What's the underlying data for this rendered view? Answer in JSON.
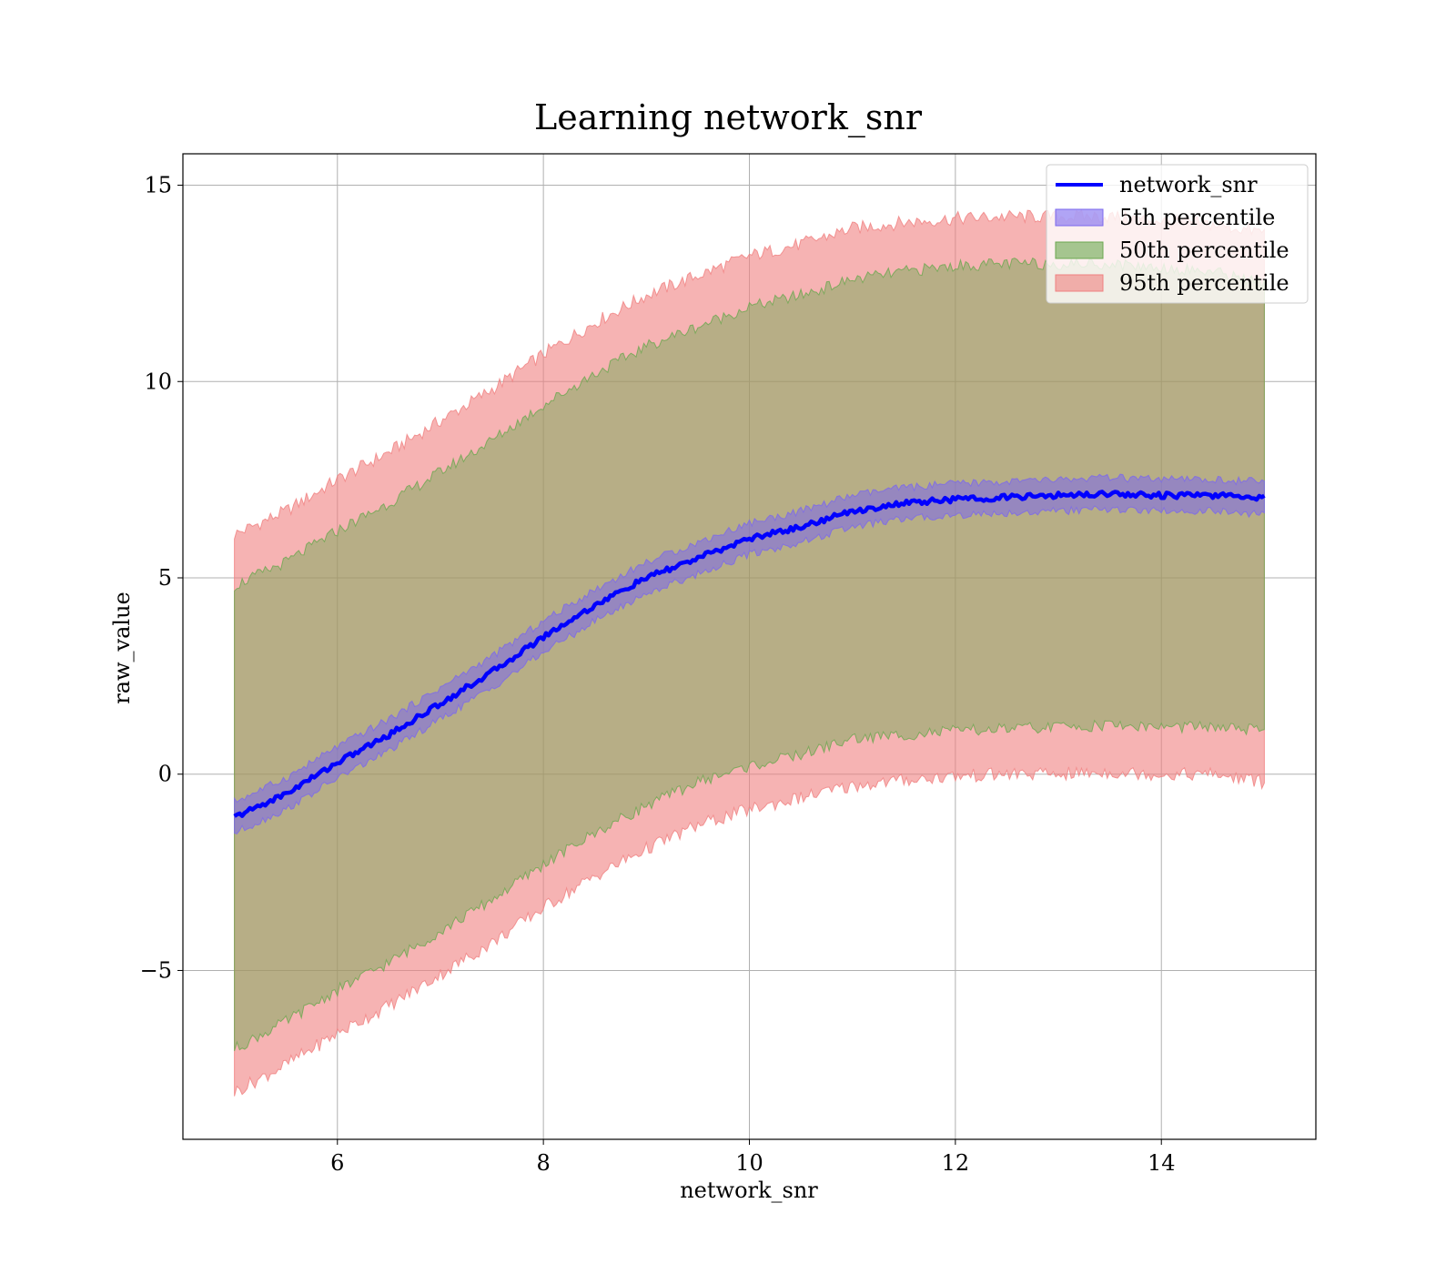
{
  "chart_data": {
    "type": "area",
    "title": "Learning network_snr",
    "xlabel": "network_snr",
    "ylabel": "raw_value",
    "xlim": [
      4.5,
      15.5
    ],
    "ylim": [
      -9.3,
      15.8
    ],
    "grid": true,
    "legend_position": "top-right",
    "x_ticks": [
      {
        "value": 6,
        "label": "6"
      },
      {
        "value": 8,
        "label": "8"
      },
      {
        "value": 10,
        "label": "10"
      },
      {
        "value": 12,
        "label": "12"
      },
      {
        "value": 14,
        "label": "14"
      }
    ],
    "y_ticks": [
      {
        "value": -5,
        "label": "−5"
      },
      {
        "value": 0,
        "label": "0"
      },
      {
        "value": 5,
        "label": "5"
      },
      {
        "value": 10,
        "label": "10"
      },
      {
        "value": 15,
        "label": "15"
      }
    ],
    "x": [
      5,
      5.5,
      6,
      6.5,
      7,
      7.5,
      8,
      8.5,
      9,
      9.5,
      10,
      10.5,
      11,
      11.5,
      12,
      12.5,
      13,
      13.5,
      14,
      14.5,
      15
    ],
    "series": [
      {
        "name": "network_snr",
        "kind": "line",
        "color": "#0000ff",
        "values": [
          -1.1,
          -0.5,
          0.3,
          1.0,
          1.8,
          2.6,
          3.5,
          4.3,
          5.0,
          5.5,
          6.0,
          6.3,
          6.7,
          6.9,
          7.0,
          7.05,
          7.1,
          7.15,
          7.1,
          7.1,
          7.05
        ]
      },
      {
        "name": "5th percentile",
        "kind": "band",
        "color": "#7b68ee",
        "lower": [
          -1.5,
          -0.9,
          -0.1,
          0.6,
          1.4,
          2.2,
          3.1,
          3.9,
          4.6,
          5.1,
          5.6,
          5.9,
          6.3,
          6.5,
          6.6,
          6.65,
          6.7,
          6.75,
          6.7,
          6.7,
          6.6
        ],
        "upper": [
          -0.7,
          -0.1,
          0.7,
          1.4,
          2.2,
          3.0,
          3.9,
          4.7,
          5.4,
          5.9,
          6.4,
          6.7,
          7.1,
          7.3,
          7.4,
          7.45,
          7.5,
          7.55,
          7.5,
          7.5,
          7.45
        ]
      },
      {
        "name": "50th percentile",
        "kind": "band",
        "color": "#6aa84f",
        "lower": [
          -7.0,
          -6.3,
          -5.5,
          -4.8,
          -4.0,
          -3.2,
          -2.3,
          -1.5,
          -0.8,
          -0.2,
          0.2,
          0.5,
          0.9,
          1.0,
          1.1,
          1.15,
          1.2,
          1.25,
          1.2,
          1.2,
          1.1
        ],
        "upper": [
          4.8,
          5.4,
          6.2,
          6.9,
          7.7,
          8.5,
          9.4,
          10.2,
          10.9,
          11.4,
          11.9,
          12.2,
          12.6,
          12.8,
          12.95,
          13.0,
          13.0,
          13.0,
          12.9,
          12.8,
          12.5
        ]
      },
      {
        "name": "95th percentile",
        "kind": "band",
        "color": "#f08080",
        "lower": [
          -8.1,
          -7.4,
          -6.6,
          -5.9,
          -5.1,
          -4.3,
          -3.4,
          -2.6,
          -1.9,
          -1.3,
          -0.9,
          -0.6,
          -0.3,
          -0.15,
          -0.05,
          0.0,
          0.0,
          0.05,
          0.0,
          0.0,
          -0.2
        ],
        "upper": [
          6.1,
          6.7,
          7.5,
          8.2,
          9.0,
          9.8,
          10.7,
          11.5,
          12.2,
          12.7,
          13.2,
          13.5,
          13.9,
          14.05,
          14.15,
          14.2,
          14.2,
          14.2,
          14.1,
          14.0,
          13.8
        ]
      }
    ]
  }
}
